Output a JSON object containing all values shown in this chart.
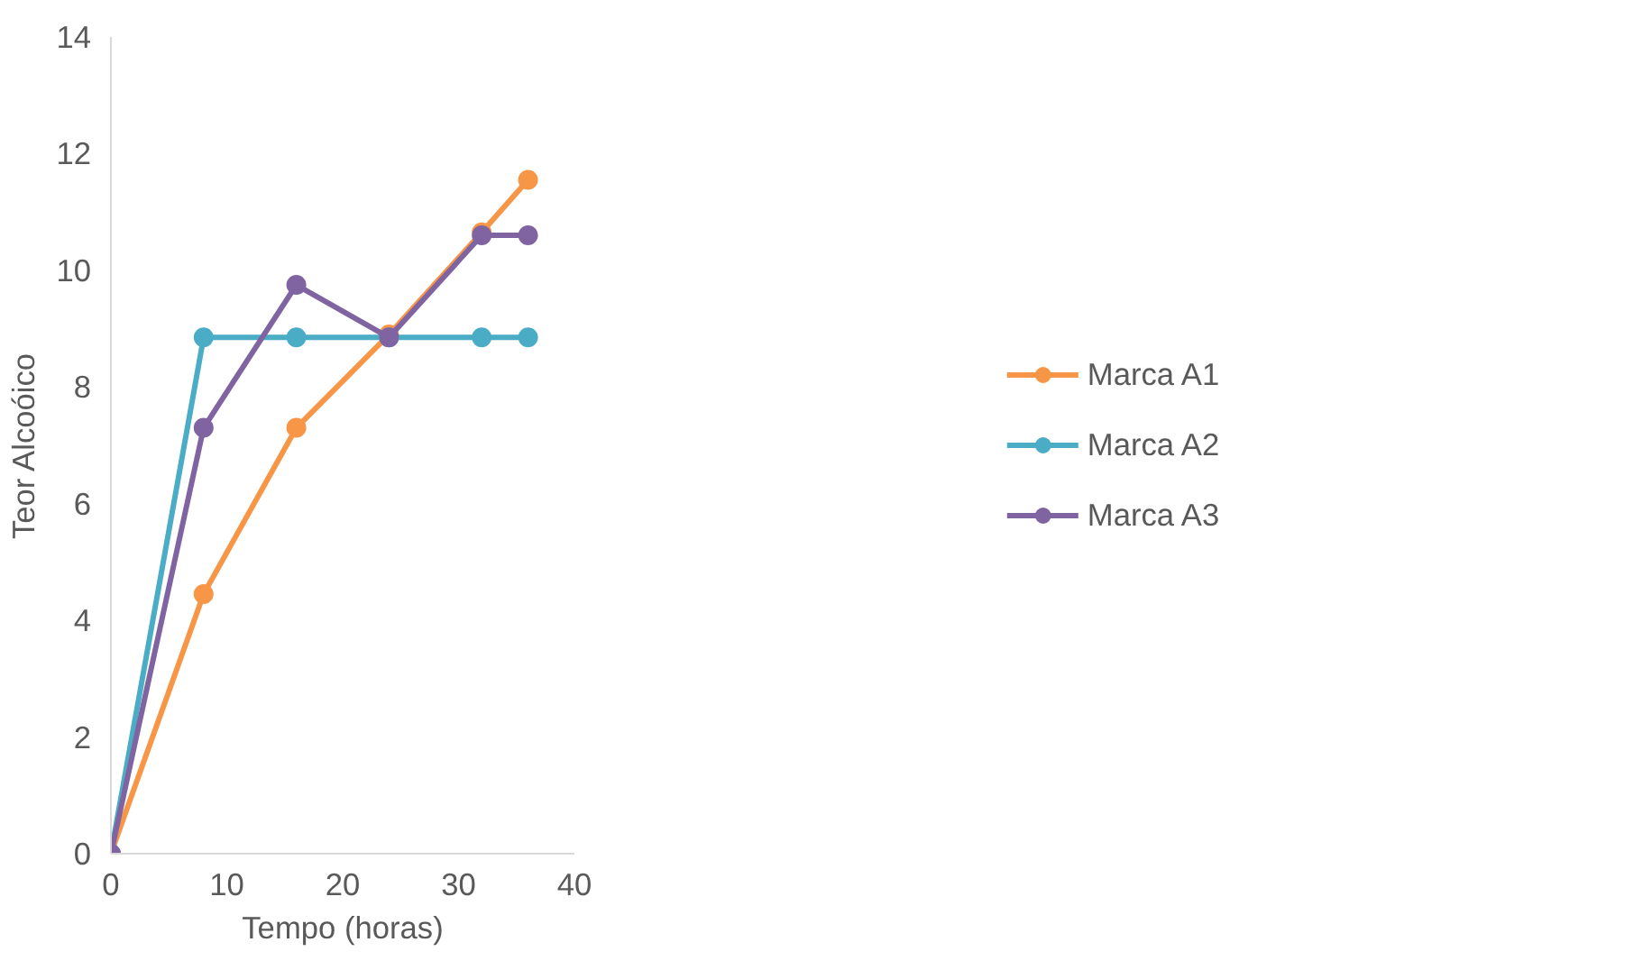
{
  "chart_data": {
    "type": "line",
    "xlabel": "Tempo (horas)",
    "ylabel": "Teor Alcoóico",
    "x": [
      0,
      8,
      16,
      24,
      32,
      36
    ],
    "series": [
      {
        "name": "Marca A1",
        "color": "#f79646",
        "values": [
          0,
          4.45,
          7.3,
          8.9,
          10.65,
          11.55
        ]
      },
      {
        "name": "Marca A2",
        "color": "#4bacc6",
        "values": [
          0,
          8.85,
          8.85,
          8.85,
          8.85,
          8.85
        ]
      },
      {
        "name": "Marca A3",
        "color": "#8064a2",
        "values": [
          0,
          7.3,
          9.75,
          8.85,
          10.6,
          10.6
        ]
      }
    ],
    "xlim": [
      0,
      40
    ],
    "xticks": [
      0,
      10,
      20,
      30,
      40
    ],
    "ylim": [
      0,
      14
    ],
    "yticks": [
      0,
      2,
      4,
      6,
      8,
      10,
      12,
      14
    ],
    "grid": false,
    "legend": "right",
    "marker": "circle",
    "line_style": "solid"
  }
}
